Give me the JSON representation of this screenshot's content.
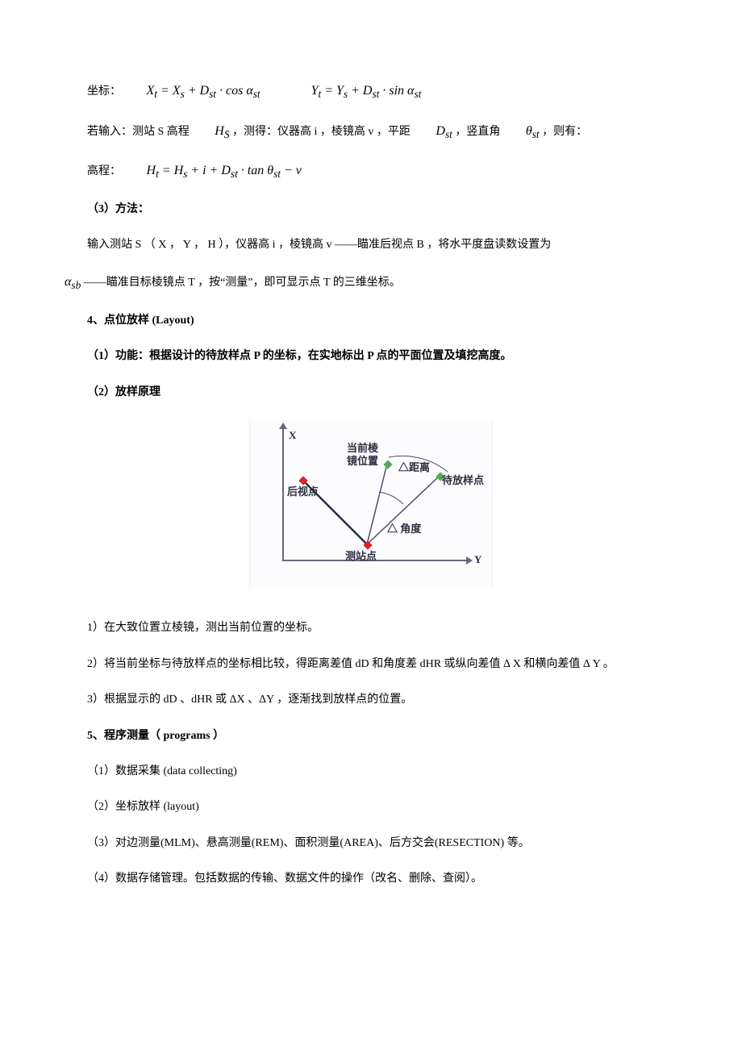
{
  "line1_prefix": "坐标：",
  "formula1": "X<sub>t</sub> = X<sub>s</sub> + D<sub>st</sub> · cos α<sub>st</sub>",
  "formula1b": "Y<sub>t</sub> = Y<sub>s</sub> + D<sub>st</sub> · sin α<sub>st</sub>",
  "line2_a": "若输入：测站 S 高程 ",
  "line2_var1": "H<sub>S</sub>",
  "line2_b": " ，测得：仪器高 i ，棱镜高 v ，平距 ",
  "line2_var2": "D<sub>st</sub>",
  "line2_c": "，竖直角 ",
  "line2_var3": "θ<sub>st</sub>",
  "line2_d": "，则有：",
  "line3_prefix": "高程：",
  "formula3": "H<sub>t</sub> = H<sub>s</sub> + i + D<sub>st</sub> · tan θ<sub>st</sub> − v",
  "h_method": "（3）方法：",
  "method_line1": "输入测站 S （ X ， Y ， H ），仪器高 i ，棱镜高 v ——瞄准后视点 B ，将水平度盘读数设置为",
  "method_var": "α<sub>sb</sub>",
  "method_line2": " ——瞄准目标棱镜点 T ，按“测量”，即可显示点 T 的三维坐标。",
  "h4": "4、点位放样 (Layout)",
  "p4_1": "（1）功能：根据设计的待放样点 P 的坐标，在实地标出 P 点的平面位置及填挖高度。",
  "p4_2": "（2）放样原理",
  "diag": {
    "axis_x_label": "X",
    "axis_y_label": "Y",
    "label_current": "当前棱\n镜位置",
    "label_dist": "△距离",
    "label_target": "待放样点",
    "label_back": "后视点",
    "label_angle": "△ 角度",
    "label_station": "测站点",
    "colors": {
      "axis": "#646882",
      "line": "#4a4e6a",
      "arc": "#4a4e6a",
      "red": "#d22",
      "green": "#5a5"
    }
  },
  "step1": "1）在大致位置立棱镜，测出当前位置的坐标。",
  "step2": "2）将当前坐标与待放样点的坐标相比较，得距离差值 dD 和角度差 dHR 或纵向差值 Δ X 和横向差值 Δ Y 。",
  "step3": "3）根据显示的 dD 、dHR 或 ΔX 、ΔY ，逐渐找到放样点的位置。",
  "h5": "5、程序测量（ programs ）",
  "p5_1": "（1）数据采集 (data collecting)",
  "p5_2": "（2）坐标放样 (layout)",
  "p5_3": "（3）对边测量(MLM)、悬高测量(REM)、面积测量(AREA)、后方交会(RESECTION) 等。",
  "p5_4": "（4）数据存储管理。包括数据的传输、数据文件的操作（改名、删除、查阅）。"
}
